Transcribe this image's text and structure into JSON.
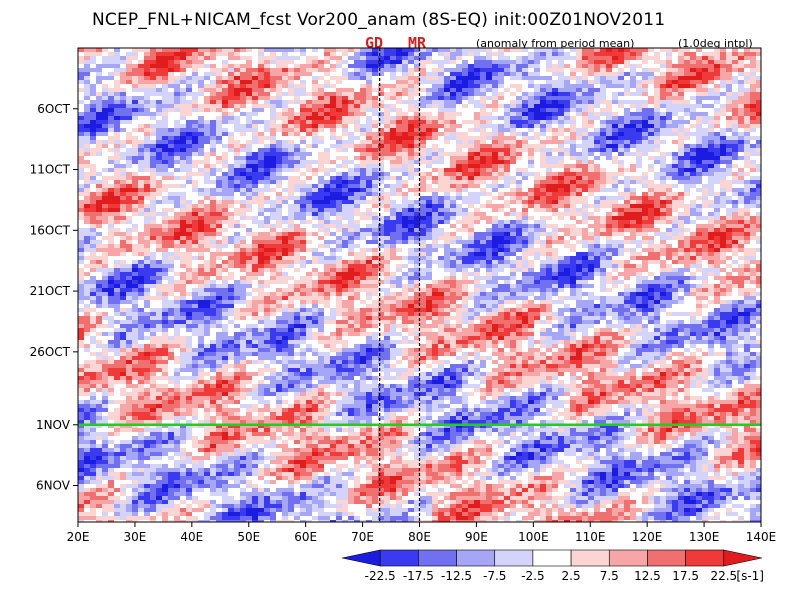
{
  "title": "NCEP_FNL+NICAM_fcst Vor200_anam (8S-EQ) init:00Z01NOV2011",
  "notes": {
    "left": "(anomaly from period mean)",
    "right": "(1.0deg intpl)"
  },
  "markers": [
    {
      "label": "GD",
      "lon": 73
    },
    {
      "label": "MR",
      "lon": 80
    }
  ],
  "colors": {
    "neg": [
      "#1c1ce0",
      "#3a3af0",
      "#7070f0",
      "#a6a6f6",
      "#d4d4fb"
    ],
    "mid": "#ffffff",
    "pos": [
      "#fbd4d4",
      "#f6a6a6",
      "#f07070",
      "#f03a3a",
      "#e01c1c"
    ],
    "init_line": "#22cc22"
  },
  "chart_data": {
    "type": "heatmap",
    "xlabel": "",
    "ylabel": "",
    "x_ticks": [
      "20E",
      "30E",
      "40E",
      "50E",
      "60E",
      "70E",
      "80E",
      "90E",
      "100E",
      "110E",
      "120E",
      "130E",
      "140E"
    ],
    "x_range": [
      20,
      140
    ],
    "y_ticks": [
      "6OCT",
      "11OCT",
      "16OCT",
      "21OCT",
      "26OCT",
      "1NOV",
      "6NOV"
    ],
    "y_tick_days": [
      6,
      11,
      16,
      21,
      26,
      32,
      37
    ],
    "y_range_days": [
      1,
      40
    ],
    "init_label": "1NOV",
    "colorbar": {
      "levels": [
        "-22.5",
        "-17.5",
        "-12.5",
        "-7.5",
        "-2.5",
        "2.5",
        "7.5",
        "12.5",
        "17.5",
        "22.5"
      ],
      "unit": "[s-1]"
    }
  }
}
